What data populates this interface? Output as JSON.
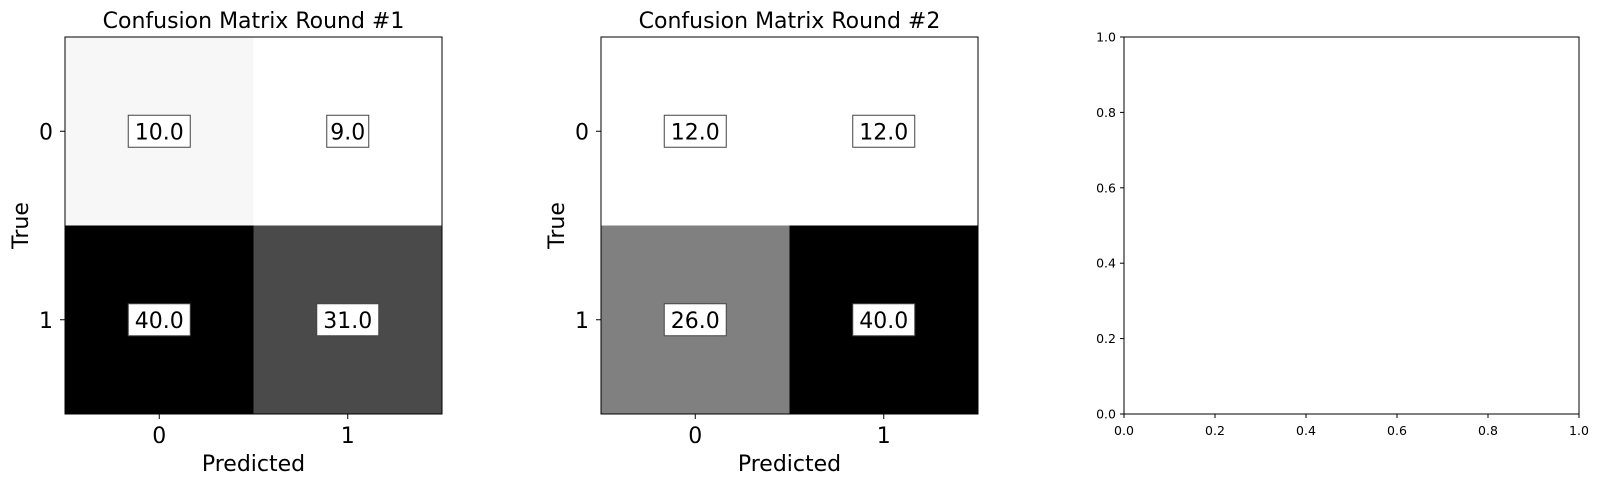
{
  "chart_data": [
    {
      "type": "heatmap",
      "title": "Confusion Matrix Round #1",
      "xlabel": "Predicted",
      "ylabel": "True",
      "x_ticks": [
        "0",
        "1"
      ],
      "y_ticks": [
        "0",
        "1"
      ],
      "colormap": "Greys",
      "values": [
        [
          {
            "value": 10.0,
            "label": "10.0"
          },
          {
            "value": 9.0,
            "label": "9.0"
          }
        ],
        [
          {
            "value": 40.0,
            "label": "40.0"
          },
          {
            "value": 31.0,
            "label": "31.0"
          }
        ]
      ]
    },
    {
      "type": "heatmap",
      "title": "Confusion Matrix Round #2",
      "xlabel": "Predicted",
      "ylabel": "True",
      "x_ticks": [
        "0",
        "1"
      ],
      "y_ticks": [
        "0",
        "1"
      ],
      "colormap": "Greys",
      "values": [
        [
          {
            "value": 12.0,
            "label": "12.0"
          },
          {
            "value": 12.0,
            "label": "12.0"
          }
        ],
        [
          {
            "value": 26.0,
            "label": "26.0"
          },
          {
            "value": 40.0,
            "label": "40.0"
          }
        ]
      ]
    },
    {
      "type": "scatter",
      "title": "",
      "xlabel": "",
      "ylabel": "",
      "xlim": [
        0.0,
        1.0
      ],
      "ylim": [
        0.0,
        1.0
      ],
      "x_ticks": [
        "0.0",
        "0.2",
        "0.4",
        "0.6",
        "0.8",
        "1.0"
      ],
      "y_ticks": [
        "0.0",
        "0.2",
        "0.4",
        "0.6",
        "0.8",
        "1.0"
      ],
      "series": []
    }
  ]
}
